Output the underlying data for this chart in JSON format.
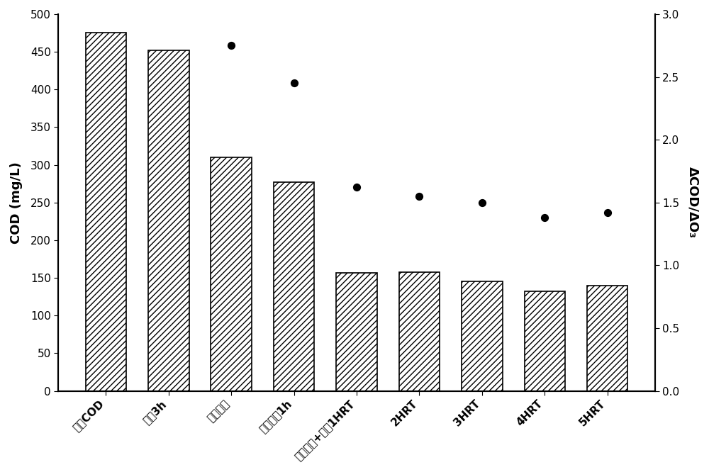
{
  "categories": [
    "初始COD",
    "吸降3h",
    "仅催化膜",
    "仅催化兢1h",
    "催化剂膜+床全1HRT",
    "2HRT",
    "3HRT",
    "4HRT",
    "5HRT"
  ],
  "bar_values": [
    475,
    452,
    310,
    277,
    157,
    158,
    145,
    132,
    140
  ],
  "dot_values": [
    null,
    null,
    2.75,
    2.45,
    1.62,
    1.55,
    1.5,
    1.38,
    1.42
  ],
  "left_ylabel": "COD (mg/L)",
  "right_ylabel": "ΔCOD/ΔO₃",
  "left_ylim": [
    0,
    500
  ],
  "right_ylim": [
    0.0,
    3.0
  ],
  "left_yticks": [
    0,
    50,
    100,
    150,
    200,
    250,
    300,
    350,
    400,
    450,
    500
  ],
  "right_yticks": [
    0.0,
    0.5,
    1.0,
    1.5,
    2.0,
    2.5,
    3.0
  ],
  "bar_color": "white",
  "bar_edgecolor": "black",
  "dot_color": "black",
  "hatch": "////",
  "figsize": [
    10.0,
    6.66
  ],
  "dpi": 100,
  "background_color": "white"
}
